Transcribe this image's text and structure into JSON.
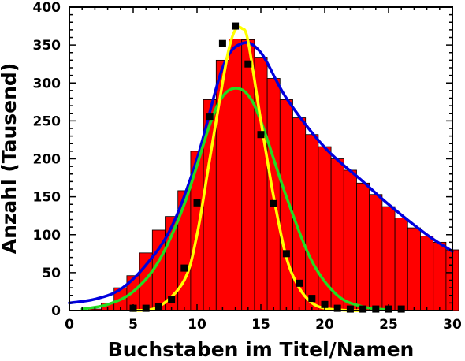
{
  "chart_data": {
    "type": "bar",
    "title": "",
    "xlabel": "Buchstaben im Titel/Namen",
    "ylabel": "Anzahl (Tausend)",
    "xlim": [
      0,
      30
    ],
    "ylim": [
      0,
      400
    ],
    "x_ticks": [
      "0",
      "5",
      "10",
      "15",
      "20",
      "25",
      "30"
    ],
    "y_ticks": [
      "0",
      "50",
      "100",
      "150",
      "200",
      "250",
      "300",
      "350",
      "400"
    ],
    "grid": false,
    "legend": "none",
    "bars": {
      "color": "#ff0000",
      "x": [
        1,
        2,
        3,
        4,
        5,
        6,
        7,
        8,
        9,
        10,
        11,
        12,
        13,
        14,
        15,
        16,
        17,
        18,
        19,
        20,
        21,
        22,
        23,
        24,
        25,
        26,
        27,
        28,
        29,
        30
      ],
      "values": [
        0,
        2,
        10,
        30,
        46,
        76,
        106,
        124,
        158,
        210,
        278,
        330,
        358,
        357,
        334,
        306,
        278,
        254,
        232,
        216,
        200,
        185,
        168,
        153,
        137,
        122,
        109,
        98,
        90,
        80
      ]
    },
    "points": {
      "color": "#000000",
      "x": [
        5,
        6,
        7,
        8,
        9,
        10,
        11,
        12,
        13,
        14,
        15,
        16,
        17,
        18,
        19,
        20,
        21,
        22,
        23,
        24,
        25,
        26
      ],
      "values": [
        3,
        3,
        5,
        14,
        56,
        142,
        256,
        352,
        375,
        325,
        232,
        141,
        75,
        36,
        16,
        8,
        3,
        2,
        2,
        2,
        2,
        2
      ]
    },
    "series": [
      {
        "color": "#0000dd",
        "x": [
          0,
          2,
          4,
          6,
          8,
          10,
          12,
          13.5,
          15,
          17,
          20,
          23,
          25,
          28,
          30
        ],
        "values": [
          10,
          15,
          28,
          60,
          110,
          200,
          320,
          352,
          340,
          280,
          215,
          170,
          140,
          100,
          78
        ]
      },
      {
        "color": "#22dd22",
        "x": [
          1,
          3,
          5,
          7,
          9,
          11,
          12,
          13,
          14,
          15,
          17,
          19,
          21,
          23,
          25
        ],
        "values": [
          2,
          8,
          25,
          65,
          140,
          245,
          282,
          293,
          284,
          250,
          150,
          65,
          20,
          5,
          1
        ]
      },
      {
        "color": "#ffff00",
        "x": [
          5,
          7,
          9,
          10,
          11,
          12,
          12.5,
          13,
          13.5,
          14,
          15,
          16,
          17,
          18,
          19,
          20,
          21,
          22,
          23
        ],
        "values": [
          0,
          5,
          40,
          100,
          200,
          300,
          345,
          370,
          372,
          355,
          250,
          150,
          70,
          30,
          10,
          3,
          1,
          0,
          0
        ]
      }
    ]
  }
}
